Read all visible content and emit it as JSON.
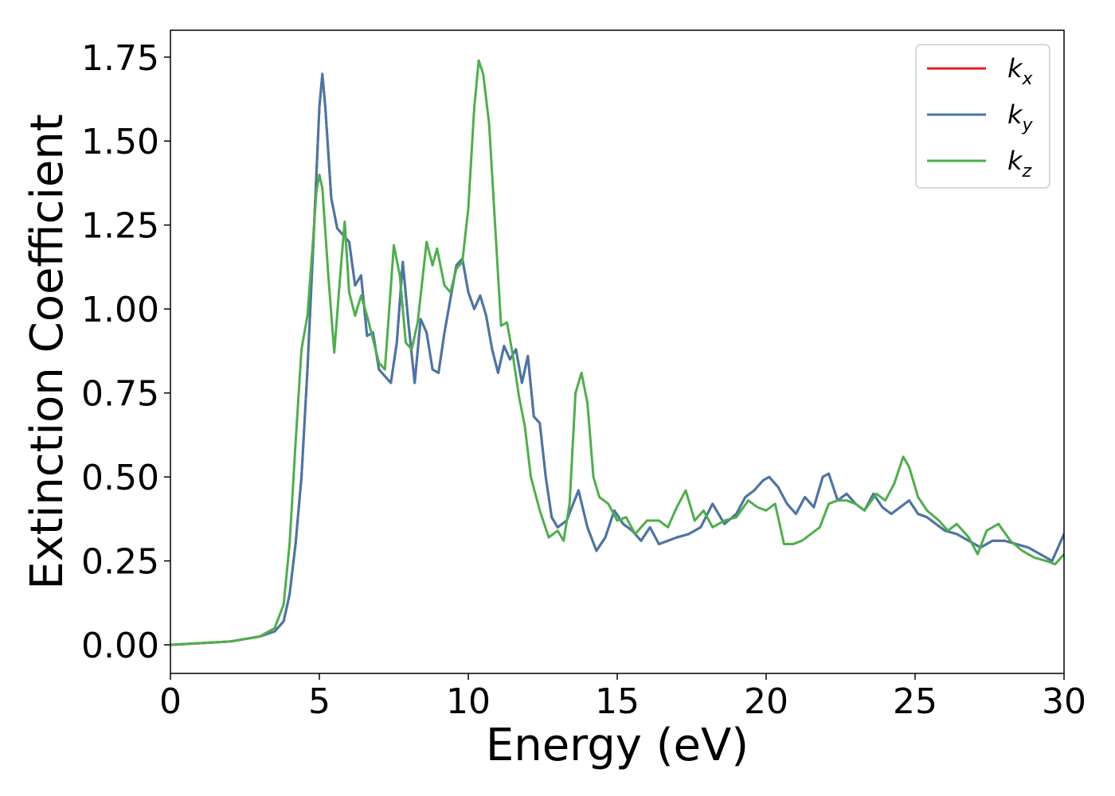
{
  "chart_data": {
    "type": "line",
    "title": "",
    "xlabel": "Energy (eV)",
    "ylabel": "Extinction Coefficient",
    "xlim": [
      0,
      30
    ],
    "ylim": [
      -0.085,
      1.83
    ],
    "grid": false,
    "legend_position": "top-right",
    "x_ticks": [
      0,
      5,
      10,
      15,
      20,
      25,
      30
    ],
    "x_tick_labels": [
      "0",
      "5",
      "10",
      "15",
      "20",
      "25",
      "30"
    ],
    "y_ticks": [
      0,
      0.25,
      0.5,
      0.75,
      1.0,
      1.25,
      1.5,
      1.75
    ],
    "y_tick_labels": [
      "0.00",
      "0.25",
      "0.50",
      "0.75",
      "1.00",
      "1.25",
      "1.50",
      "1.75"
    ],
    "series": [
      {
        "name": "k",
        "subscript": "x",
        "color": "#e41a1c",
        "x": [
          0,
          1,
          2,
          3,
          3.5,
          3.8,
          4.0,
          4.2,
          4.4,
          4.6,
          4.8,
          5.0,
          5.1,
          5.2,
          5.4,
          5.6,
          5.8,
          6.0,
          6.2,
          6.4,
          6.6,
          6.8,
          7.0,
          7.2,
          7.4,
          7.6,
          7.8,
          8.0,
          8.2,
          8.4,
          8.6,
          8.8,
          9.0,
          9.2,
          9.4,
          9.6,
          9.8,
          10.0,
          10.2,
          10.4,
          10.6,
          10.8,
          11.0,
          11.2,
          11.4,
          11.6,
          11.8,
          12.0,
          12.2,
          12.4,
          12.6,
          12.8,
          13.0,
          13.3,
          13.7,
          14.0,
          14.3,
          14.6,
          14.9,
          15.2,
          15.5,
          15.8,
          16.1,
          16.4,
          16.7,
          17.0,
          17.4,
          17.8,
          18.2,
          18.6,
          19.0,
          19.3,
          19.6,
          19.9,
          20.1,
          20.4,
          20.7,
          21.0,
          21.3,
          21.6,
          21.9,
          22.1,
          22.4,
          22.7,
          23.0,
          23.3,
          23.6,
          23.9,
          24.2,
          24.5,
          24.8,
          25.1,
          25.4,
          25.7,
          26.0,
          26.4,
          26.8,
          27.2,
          27.6,
          28.0,
          28.4,
          28.8,
          29.2,
          29.6,
          30.0
        ],
        "y": [
          0.0,
          0.005,
          0.01,
          0.025,
          0.04,
          0.07,
          0.15,
          0.3,
          0.5,
          0.82,
          1.2,
          1.6,
          1.7,
          1.6,
          1.33,
          1.24,
          1.22,
          1.2,
          1.07,
          1.1,
          0.92,
          0.93,
          0.82,
          0.8,
          0.78,
          0.9,
          1.14,
          0.95,
          0.78,
          0.97,
          0.93,
          0.82,
          0.81,
          0.93,
          1.03,
          1.13,
          1.15,
          1.05,
          1.0,
          1.04,
          0.98,
          0.88,
          0.81,
          0.89,
          0.85,
          0.88,
          0.78,
          0.86,
          0.68,
          0.66,
          0.5,
          0.38,
          0.35,
          0.37,
          0.46,
          0.35,
          0.28,
          0.32,
          0.4,
          0.36,
          0.34,
          0.31,
          0.35,
          0.3,
          0.31,
          0.32,
          0.33,
          0.35,
          0.42,
          0.36,
          0.39,
          0.44,
          0.46,
          0.49,
          0.5,
          0.47,
          0.42,
          0.39,
          0.44,
          0.41,
          0.5,
          0.51,
          0.43,
          0.45,
          0.42,
          0.4,
          0.45,
          0.41,
          0.39,
          0.41,
          0.43,
          0.39,
          0.38,
          0.36,
          0.34,
          0.33,
          0.31,
          0.29,
          0.31,
          0.31,
          0.3,
          0.29,
          0.27,
          0.25,
          0.33
        ]
      },
      {
        "name": "k",
        "subscript": "y",
        "color": "#4477aa",
        "x": [
          0,
          1,
          2,
          3,
          3.5,
          3.8,
          4.0,
          4.2,
          4.4,
          4.6,
          4.8,
          5.0,
          5.1,
          5.2,
          5.4,
          5.6,
          5.8,
          6.0,
          6.2,
          6.4,
          6.6,
          6.8,
          7.0,
          7.2,
          7.4,
          7.6,
          7.8,
          8.0,
          8.2,
          8.4,
          8.6,
          8.8,
          9.0,
          9.2,
          9.4,
          9.6,
          9.8,
          10.0,
          10.2,
          10.4,
          10.6,
          10.8,
          11.0,
          11.2,
          11.4,
          11.6,
          11.8,
          12.0,
          12.2,
          12.4,
          12.6,
          12.8,
          13.0,
          13.3,
          13.7,
          14.0,
          14.3,
          14.6,
          14.9,
          15.2,
          15.5,
          15.8,
          16.1,
          16.4,
          16.7,
          17.0,
          17.4,
          17.8,
          18.2,
          18.6,
          19.0,
          19.3,
          19.6,
          19.9,
          20.1,
          20.4,
          20.7,
          21.0,
          21.3,
          21.6,
          21.9,
          22.1,
          22.4,
          22.7,
          23.0,
          23.3,
          23.6,
          23.9,
          24.2,
          24.5,
          24.8,
          25.1,
          25.4,
          25.7,
          26.0,
          26.4,
          26.8,
          27.2,
          27.6,
          28.0,
          28.4,
          28.8,
          29.2,
          29.6,
          30.0
        ],
        "y": [
          0.0,
          0.005,
          0.01,
          0.025,
          0.04,
          0.07,
          0.15,
          0.3,
          0.5,
          0.82,
          1.2,
          1.6,
          1.7,
          1.6,
          1.33,
          1.24,
          1.22,
          1.2,
          1.07,
          1.1,
          0.92,
          0.93,
          0.82,
          0.8,
          0.78,
          0.9,
          1.14,
          0.95,
          0.78,
          0.97,
          0.93,
          0.82,
          0.81,
          0.93,
          1.03,
          1.13,
          1.15,
          1.05,
          1.0,
          1.04,
          0.98,
          0.88,
          0.81,
          0.89,
          0.85,
          0.88,
          0.78,
          0.86,
          0.68,
          0.66,
          0.5,
          0.38,
          0.35,
          0.37,
          0.46,
          0.35,
          0.28,
          0.32,
          0.4,
          0.36,
          0.34,
          0.31,
          0.35,
          0.3,
          0.31,
          0.32,
          0.33,
          0.35,
          0.42,
          0.36,
          0.39,
          0.44,
          0.46,
          0.49,
          0.5,
          0.47,
          0.42,
          0.39,
          0.44,
          0.41,
          0.5,
          0.51,
          0.43,
          0.45,
          0.42,
          0.4,
          0.45,
          0.41,
          0.39,
          0.41,
          0.43,
          0.39,
          0.38,
          0.36,
          0.34,
          0.33,
          0.31,
          0.29,
          0.31,
          0.31,
          0.3,
          0.29,
          0.27,
          0.25,
          0.33
        ]
      },
      {
        "name": "k",
        "subscript": "z",
        "color": "#4daf4a",
        "x": [
          0,
          1,
          2,
          3,
          3.5,
          3.8,
          4.0,
          4.2,
          4.4,
          4.6,
          4.8,
          4.9,
          5.0,
          5.1,
          5.3,
          5.5,
          5.7,
          5.85,
          6.0,
          6.2,
          6.4,
          6.6,
          6.8,
          7.0,
          7.2,
          7.5,
          7.7,
          7.9,
          8.1,
          8.3,
          8.6,
          8.8,
          8.95,
          9.2,
          9.4,
          9.6,
          9.8,
          10.0,
          10.2,
          10.35,
          10.5,
          10.7,
          10.9,
          11.1,
          11.3,
          11.5,
          11.7,
          11.9,
          12.1,
          12.4,
          12.7,
          13.0,
          13.2,
          13.4,
          13.6,
          13.8,
          14.0,
          14.2,
          14.4,
          14.7,
          15.0,
          15.3,
          15.6,
          16.0,
          16.4,
          16.7,
          17.0,
          17.3,
          17.6,
          17.9,
          18.2,
          18.6,
          19.0,
          19.4,
          19.7,
          20.0,
          20.3,
          20.6,
          20.9,
          21.2,
          21.5,
          21.8,
          22.1,
          22.4,
          22.7,
          23.0,
          23.3,
          23.7,
          24.0,
          24.3,
          24.6,
          24.8,
          25.1,
          25.4,
          25.8,
          26.1,
          26.4,
          26.8,
          27.1,
          27.4,
          27.8,
          28.2,
          28.6,
          29.0,
          29.4,
          29.7,
          30.0
        ],
        "y": [
          0.0,
          0.005,
          0.01,
          0.025,
          0.05,
          0.12,
          0.3,
          0.6,
          0.88,
          0.98,
          1.22,
          1.35,
          1.4,
          1.36,
          1.1,
          0.87,
          1.1,
          1.26,
          1.05,
          0.98,
          1.04,
          0.98,
          0.91,
          0.84,
          0.82,
          1.19,
          1.1,
          0.9,
          0.88,
          0.96,
          1.2,
          1.13,
          1.18,
          1.07,
          1.05,
          1.12,
          1.14,
          1.3,
          1.6,
          1.74,
          1.7,
          1.55,
          1.25,
          0.95,
          0.96,
          0.86,
          0.74,
          0.65,
          0.5,
          0.4,
          0.32,
          0.34,
          0.31,
          0.42,
          0.75,
          0.81,
          0.72,
          0.5,
          0.44,
          0.42,
          0.37,
          0.38,
          0.33,
          0.37,
          0.37,
          0.35,
          0.41,
          0.46,
          0.37,
          0.4,
          0.35,
          0.37,
          0.38,
          0.43,
          0.41,
          0.4,
          0.42,
          0.3,
          0.3,
          0.31,
          0.33,
          0.35,
          0.42,
          0.43,
          0.43,
          0.42,
          0.4,
          0.45,
          0.43,
          0.48,
          0.56,
          0.53,
          0.44,
          0.4,
          0.37,
          0.34,
          0.36,
          0.32,
          0.27,
          0.34,
          0.36,
          0.31,
          0.28,
          0.26,
          0.25,
          0.24,
          0.27
        ]
      }
    ]
  }
}
